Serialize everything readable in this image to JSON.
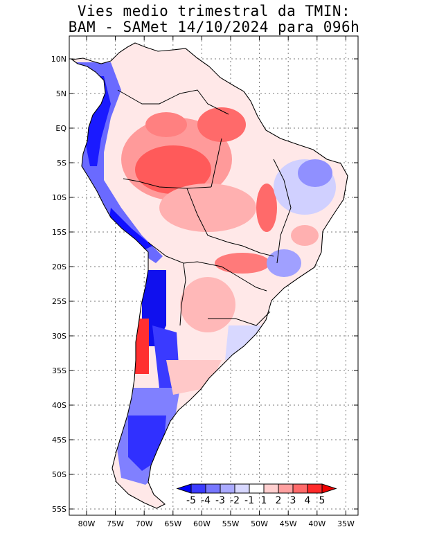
{
  "title_line1": "Vies medio trimestral da TMIN:",
  "title_line2": "BAM - SAMet 14/10/2024  para 096h",
  "lat_labels": [
    "10N",
    "5N",
    "EQ",
    "5S",
    "10S",
    "15S",
    "20S",
    "25S",
    "30S",
    "35S",
    "40S",
    "45S",
    "50S",
    "55S"
  ],
  "lon_labels": [
    "80W",
    "75W",
    "70W",
    "65W",
    "60W",
    "55W",
    "50W",
    "45W",
    "40W",
    "35W"
  ],
  "colorbar": {
    "labels": [
      "-5",
      "-4",
      "-3",
      "-2",
      "-1",
      "1",
      "2",
      "3",
      "4",
      "5"
    ],
    "colors": [
      "#0000ff",
      "#3b3bff",
      "#7777ff",
      "#aaaaff",
      "#d8d8ff",
      "#ffffff",
      "#ffd0d0",
      "#ffa0a0",
      "#ff6a6a",
      "#ff2a2a",
      "#ee0000"
    ]
  },
  "colors": {
    "land_base": "#ffe8e8",
    "strong_red": "#ff5555",
    "mid_red": "#ff9a9a",
    "strong_blue": "#2020ff",
    "mid_blue": "#8080ff",
    "light_blue": "#c8c8ff"
  }
}
